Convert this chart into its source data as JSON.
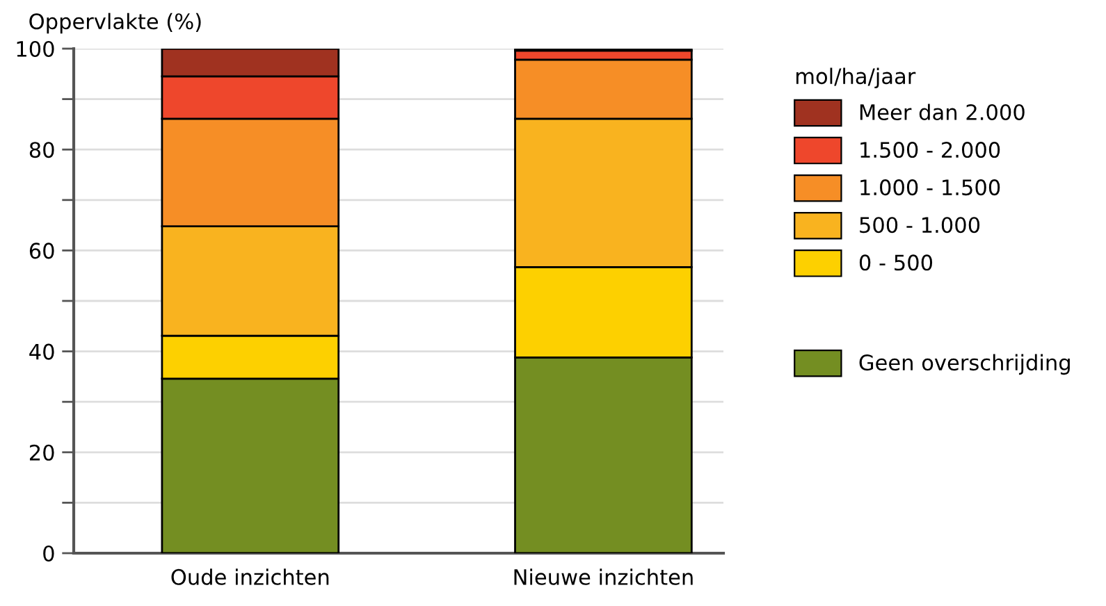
{
  "chart_data": {
    "type": "bar",
    "stacked": true,
    "ylabel": "Oppervlakte (%)",
    "legend_title": "mol/ha/jaar",
    "categories": [
      "Oude inzichten",
      "Nieuwe inzichten"
    ],
    "series": [
      {
        "name": "Geen overschrijding",
        "color": "#748e22",
        "values": [
          34.6,
          38.8
        ]
      },
      {
        "name": "0 - 500",
        "color": "#fdd000",
        "values": [
          8.5,
          17.9
        ]
      },
      {
        "name": "500 - 1.000",
        "color": "#f9b31f",
        "values": [
          21.7,
          29.4
        ]
      },
      {
        "name": "1.000 - 1.500",
        "color": "#f68e26",
        "values": [
          21.3,
          11.7
        ]
      },
      {
        "name": "1.500 - 2.000",
        "color": "#ee472c",
        "values": [
          8.4,
          1.8
        ]
      },
      {
        "name": "Meer dan 2.000",
        "color": "#a03220",
        "values": [
          5.5,
          0.4
        ]
      }
    ],
    "ylim": [
      0,
      100
    ],
    "yticks": [
      0,
      {
        "value": 10,
        "label": null
      },
      20,
      {
        "value": 30,
        "label": null
      },
      40,
      {
        "value": 50,
        "label": null
      },
      60,
      {
        "value": 70,
        "label": null
      },
      80,
      {
        "value": 90,
        "label": null
      },
      100
    ],
    "grid": "y",
    "legend": "right"
  }
}
